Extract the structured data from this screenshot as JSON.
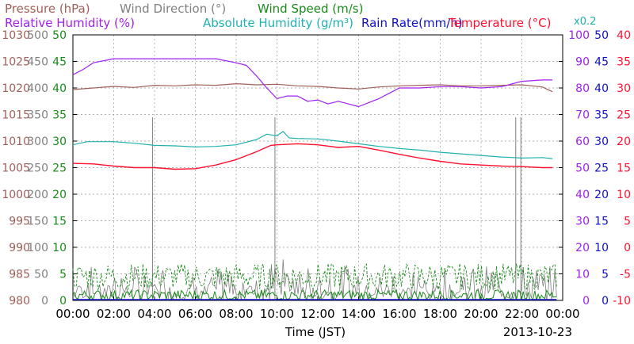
{
  "chart_data": {
    "type": "line",
    "legend": {
      "row1": [
        {
          "label": "Pressure (hPa)",
          "color": "#a0605a"
        },
        {
          "label": "Wind Direction (°)",
          "color": "#808080"
        },
        {
          "label": "Wind Speed (m/s)",
          "color": "#1a8a1a"
        }
      ],
      "row2": [
        {
          "label": "Relative Humidity (%)",
          "color": "#a020f0"
        },
        {
          "label": "Absolute Humidity (g/m³)",
          "color": "#20b0b0"
        },
        {
          "label": "Rain Rate(mm/h)",
          "color": "#1010c8"
        },
        {
          "label": "Temperature (°C)",
          "color": "#ff1030"
        }
      ],
      "rain_multiplier": "x0.2"
    },
    "xlabel": "Time (JST)",
    "date": "2013-10-23",
    "x_ticks": [
      "00:00",
      "02:00",
      "04:00",
      "06:00",
      "08:00",
      "10:00",
      "12:00",
      "14:00",
      "16:00",
      "18:00",
      "20:00",
      "22:00",
      "00:00"
    ],
    "xlim_hours": [
      0,
      24
    ],
    "axes": {
      "pressure": {
        "color": "#a0605a",
        "range": [
          980,
          1030
        ],
        "ticks": [
          "980",
          "985",
          "990",
          "995",
          "1000",
          "1005",
          "1010",
          "1015",
          "1020",
          "1025",
          "1030"
        ]
      },
      "wind_direction": {
        "color": "#808080",
        "range": [
          0,
          500
        ],
        "ticks": [
          "0",
          "50",
          "100",
          "150",
          "200",
          "250",
          "300",
          "350",
          "400",
          "450",
          "500"
        ]
      },
      "wind_speed": {
        "color": "#1a8a1a",
        "range": [
          0,
          50
        ],
        "ticks": [
          "0",
          "5",
          "10",
          "15",
          "20",
          "25",
          "30",
          "35",
          "40",
          "45",
          "50"
        ]
      },
      "humidity": {
        "color": "#a020f0",
        "range": [
          0,
          100
        ],
        "ticks": [
          "0",
          "10",
          "20",
          "30",
          "40",
          "50",
          "60",
          "70",
          "80",
          "90",
          "100"
        ]
      },
      "rain": {
        "color": "#1010c8",
        "range": [
          0,
          50
        ],
        "ticks": [
          "0",
          "5",
          "10",
          "15",
          "20",
          "25",
          "30",
          "35",
          "40",
          "45",
          "50"
        ]
      },
      "temperature": {
        "color": "#ff1030",
        "range": [
          -10,
          40
        ],
        "ticks": [
          "-10",
          "-5",
          "0",
          "5",
          "10",
          "15",
          "20",
          "25",
          "30",
          "35",
          "40"
        ]
      }
    },
    "series": {
      "pressure": {
        "axis": "pressure",
        "color": "#a0605a",
        "points": [
          [
            0,
            1019.7
          ],
          [
            1,
            1020.0
          ],
          [
            2,
            1020.3
          ],
          [
            3,
            1020.1
          ],
          [
            4,
            1020.5
          ],
          [
            5,
            1020.4
          ],
          [
            6,
            1020.6
          ],
          [
            7,
            1020.5
          ],
          [
            8,
            1020.8
          ],
          [
            9,
            1020.6
          ],
          [
            10,
            1020.7
          ],
          [
            11,
            1020.4
          ],
          [
            12,
            1020.3
          ],
          [
            13,
            1020.0
          ],
          [
            14,
            1019.8
          ],
          [
            15,
            1020.2
          ],
          [
            16,
            1020.4
          ],
          [
            17,
            1020.5
          ],
          [
            18,
            1020.6
          ],
          [
            19,
            1020.4
          ],
          [
            20,
            1020.4
          ],
          [
            21,
            1020.5
          ],
          [
            22,
            1020.6
          ],
          [
            23,
            1020.2
          ],
          [
            23.5,
            1019.3
          ]
        ]
      },
      "abs_humidity": {
        "axis": "wind_direction",
        "color": "#20b0b0",
        "points": [
          [
            0,
            293
          ],
          [
            0.7,
            299
          ],
          [
            2,
            299
          ],
          [
            3,
            296
          ],
          [
            4,
            292
          ],
          [
            5,
            291
          ],
          [
            6,
            289
          ],
          [
            7,
            290
          ],
          [
            8,
            293
          ],
          [
            9,
            303
          ],
          [
            9.5,
            313
          ],
          [
            10,
            310
          ],
          [
            10.3,
            318
          ],
          [
            10.6,
            306
          ],
          [
            11,
            305
          ],
          [
            12,
            304
          ],
          [
            13,
            300
          ],
          [
            14,
            295
          ],
          [
            15,
            290
          ],
          [
            16,
            286
          ],
          [
            17,
            283
          ],
          [
            18,
            279
          ],
          [
            19,
            276
          ],
          [
            20,
            273
          ],
          [
            21,
            270
          ],
          [
            22,
            268
          ],
          [
            23,
            269
          ],
          [
            23.5,
            267
          ]
        ]
      },
      "temperature": {
        "axis": "temperature",
        "color": "#ff1030",
        "points": [
          [
            0,
            15.8
          ],
          [
            1,
            15.7
          ],
          [
            2,
            15.3
          ],
          [
            3,
            15.0
          ],
          [
            4,
            15.0
          ],
          [
            5,
            14.7
          ],
          [
            6,
            14.8
          ],
          [
            7,
            15.5
          ],
          [
            8,
            16.5
          ],
          [
            9,
            18.0
          ],
          [
            9.7,
            19.2
          ],
          [
            10,
            19.3
          ],
          [
            11,
            19.5
          ],
          [
            12,
            19.3
          ],
          [
            13,
            18.8
          ],
          [
            14,
            19.0
          ],
          [
            15,
            18.3
          ],
          [
            16,
            17.5
          ],
          [
            17,
            16.8
          ],
          [
            18,
            16.2
          ],
          [
            19,
            15.7
          ],
          [
            20,
            15.5
          ],
          [
            21,
            15.3
          ],
          [
            22,
            15.2
          ],
          [
            23,
            15.0
          ],
          [
            23.5,
            15.0
          ]
        ]
      },
      "rel_humidity": {
        "axis": "humidity",
        "color": "#a020f0",
        "points": [
          [
            0,
            85
          ],
          [
            0.5,
            87
          ],
          [
            1,
            89.5
          ],
          [
            2,
            91
          ],
          [
            3,
            91
          ],
          [
            4,
            91
          ],
          [
            5,
            91
          ],
          [
            6,
            91
          ],
          [
            7,
            91
          ],
          [
            8,
            89.5
          ],
          [
            8.5,
            88.5
          ],
          [
            9,
            84.5
          ],
          [
            9.5,
            80
          ],
          [
            10,
            76
          ],
          [
            10.5,
            77
          ],
          [
            11,
            77
          ],
          [
            11.5,
            75
          ],
          [
            12,
            75.5
          ],
          [
            12.5,
            74
          ],
          [
            13,
            75
          ],
          [
            13.5,
            74
          ],
          [
            14,
            73
          ],
          [
            14.5,
            74.5
          ],
          [
            15,
            76
          ],
          [
            15.5,
            78
          ],
          [
            16,
            80
          ],
          [
            17,
            80
          ],
          [
            18,
            80.5
          ],
          [
            19,
            80.5
          ],
          [
            20,
            80
          ],
          [
            21,
            80.5
          ],
          [
            21.5,
            81.5
          ],
          [
            22,
            82.5
          ],
          [
            23,
            83
          ],
          [
            23.5,
            83
          ]
        ]
      },
      "wind_dir_spikes": {
        "axis": "wind_direction",
        "color": "#808080",
        "hours": [
          3.9,
          9.9,
          21.7,
          21.95
        ]
      },
      "wind_speed_avg": {
        "axis": "wind_speed",
        "color": "#1a8a1a",
        "approx_range": [
          0,
          2
        ]
      },
      "wind_speed_max": {
        "axis": "wind_speed",
        "color": "#1a8a1a",
        "approx_range": [
          2,
          7
        ]
      },
      "rain_rate": {
        "axis": "rain",
        "color": "#1010c8",
        "constant": 0
      }
    }
  }
}
